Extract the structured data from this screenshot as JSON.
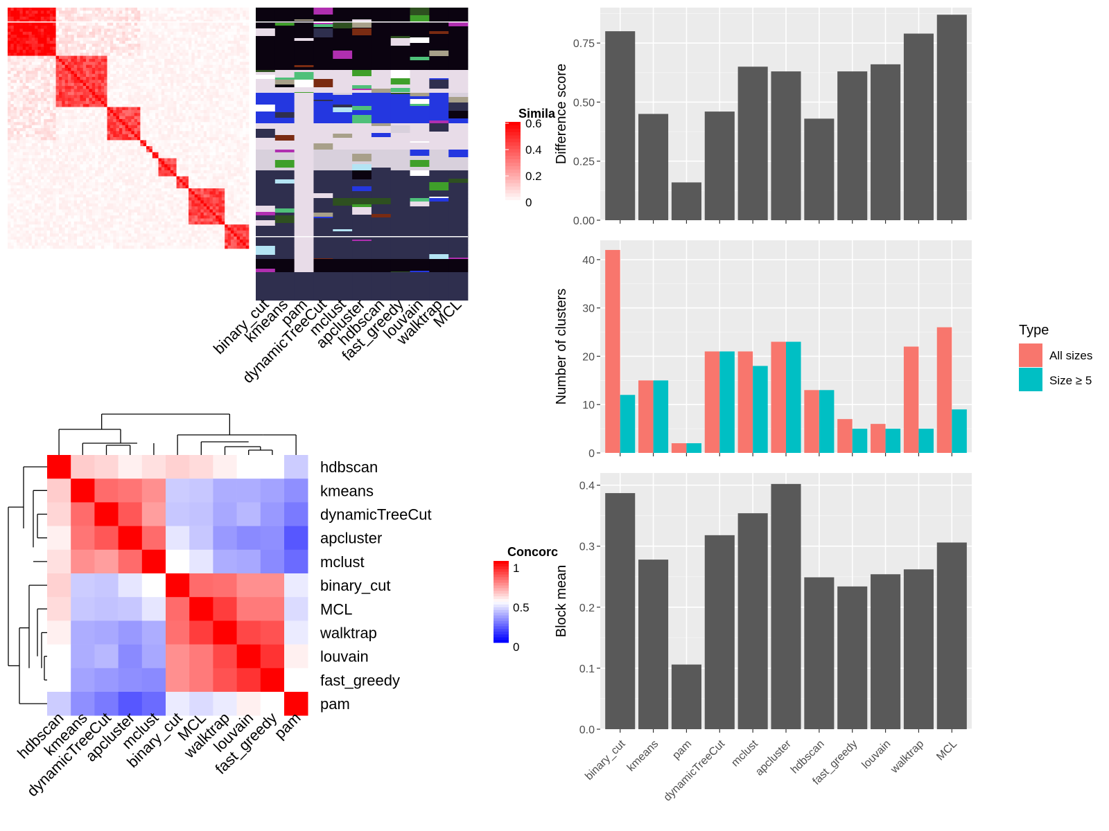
{
  "colors": {
    "panel_bg": "#ebebeb",
    "grid_minor": "#f4f4f4",
    "grid_major": "#ffffff",
    "bar_fill": "#595959",
    "all_sizes": "#f8766d",
    "size_ge5": "#00bfc4",
    "heat_high": "#ff0000",
    "heat_mid": "#ffffff",
    "heat_low": "#0000ff"
  },
  "similarity_legend": {
    "title": "Simila",
    "ticks": [
      "0.6",
      "0.4",
      "0.2",
      "0"
    ]
  },
  "concordance_legend": {
    "title": "Concorc",
    "ticks": [
      "1",
      "0.5",
      "0"
    ]
  },
  "heatmap_methods": [
    "binary_cut",
    "kmeans",
    "pam",
    "dynamicTreeCut",
    "mclust",
    "apcluster",
    "hdbscan",
    "fast_greedy",
    "louvain",
    "walktrap",
    "MCL"
  ],
  "legend": {
    "title": "Type",
    "items": [
      "All sizes",
      "Size ≥ 5"
    ]
  },
  "chart_data": [
    {
      "type": "heatmap",
      "name": "concordance",
      "rows": [
        "hdbscan",
        "kmeans",
        "dynamicTreeCut",
        "apcluster",
        "mclust",
        "binary_cut",
        "MCL",
        "walktrap",
        "louvain",
        "fast_greedy",
        "pam"
      ],
      "cols": [
        "hdbscan",
        "kmeans",
        "dynamicTreeCut",
        "apcluster",
        "mclust",
        "binary_cut",
        "MCL",
        "walktrap",
        "louvain",
        "fast_greedy",
        "pam"
      ],
      "values": [
        [
          1.0,
          0.6,
          0.58,
          0.53,
          0.56,
          0.59,
          0.57,
          0.53,
          0.5,
          0.5,
          0.4
        ],
        [
          0.6,
          1.0,
          0.79,
          0.77,
          0.72,
          0.4,
          0.39,
          0.34,
          0.34,
          0.32,
          0.28
        ],
        [
          0.58,
          0.79,
          1.0,
          0.83,
          0.69,
          0.39,
          0.38,
          0.33,
          0.36,
          0.3,
          0.24
        ],
        [
          0.53,
          0.77,
          0.83,
          1.0,
          0.79,
          0.45,
          0.39,
          0.3,
          0.27,
          0.28,
          0.17
        ],
        [
          0.56,
          0.72,
          0.69,
          0.79,
          1.0,
          0.5,
          0.45,
          0.34,
          0.33,
          0.27,
          0.21
        ],
        [
          0.59,
          0.4,
          0.39,
          0.45,
          0.5,
          1.0,
          0.79,
          0.78,
          0.72,
          0.72,
          0.46
        ],
        [
          0.57,
          0.39,
          0.38,
          0.39,
          0.45,
          0.79,
          1.0,
          0.88,
          0.76,
          0.76,
          0.43
        ],
        [
          0.53,
          0.34,
          0.33,
          0.3,
          0.34,
          0.78,
          0.88,
          1.0,
          0.86,
          0.84,
          0.46
        ],
        [
          0.5,
          0.34,
          0.36,
          0.27,
          0.33,
          0.72,
          0.76,
          0.86,
          1.0,
          0.9,
          0.53
        ],
        [
          0.5,
          0.32,
          0.3,
          0.28,
          0.27,
          0.72,
          0.76,
          0.84,
          0.9,
          1.0,
          0.5
        ],
        [
          0.4,
          0.28,
          0.24,
          0.17,
          0.21,
          0.46,
          0.43,
          0.46,
          0.53,
          0.5,
          1.0
        ]
      ]
    },
    {
      "type": "bar",
      "name": "difference_score",
      "categories": [
        "binary_cut",
        "kmeans",
        "pam",
        "dynamicTreeCut",
        "mclust",
        "apcluster",
        "hdbscan",
        "fast_greedy",
        "louvain",
        "walktrap",
        "MCL"
      ],
      "values": [
        0.8,
        0.45,
        0.16,
        0.46,
        0.65,
        0.63,
        0.43,
        0.63,
        0.66,
        0.79,
        0.87
      ],
      "ylabel": "Difference score",
      "ylim": [
        0,
        0.9
      ],
      "yticks": [
        0,
        0.25,
        0.5,
        0.75
      ],
      "ytick_labels": [
        "0.00",
        "0.25",
        "0.50",
        "0.75"
      ]
    },
    {
      "type": "bar",
      "name": "number_of_clusters",
      "categories": [
        "binary_cut",
        "kmeans",
        "pam",
        "dynamicTreeCut",
        "mclust",
        "apcluster",
        "hdbscan",
        "fast_greedy",
        "louvain",
        "walktrap",
        "MCL"
      ],
      "series": [
        {
          "name": "All sizes",
          "values": [
            42,
            15,
            2,
            21,
            21,
            23,
            13,
            7,
            6,
            22,
            26
          ]
        },
        {
          "name": "Size ≥ 5",
          "values": [
            12,
            15,
            2,
            21,
            18,
            23,
            13,
            5,
            5,
            5,
            9
          ]
        }
      ],
      "ylabel": "Number of clusters",
      "ylim": [
        0,
        44
      ],
      "yticks": [
        0,
        10,
        20,
        30,
        40
      ],
      "ytick_labels": [
        "0",
        "10",
        "20",
        "30",
        "40"
      ],
      "legend": "right"
    },
    {
      "type": "bar",
      "name": "block_mean",
      "categories": [
        "binary_cut",
        "kmeans",
        "pam",
        "dynamicTreeCut",
        "mclust",
        "apcluster",
        "hdbscan",
        "fast_greedy",
        "louvain",
        "walktrap",
        "MCL"
      ],
      "values": [
        0.387,
        0.278,
        0.106,
        0.318,
        0.354,
        0.402,
        0.249,
        0.234,
        0.254,
        0.262,
        0.306
      ],
      "ylabel": "Block mean",
      "ylim": [
        0,
        0.42
      ],
      "yticks": [
        0,
        0.1,
        0.2,
        0.3,
        0.4
      ],
      "ytick_labels": [
        "0.0",
        "0.1",
        "0.2",
        "0.3",
        "0.4"
      ]
    }
  ]
}
